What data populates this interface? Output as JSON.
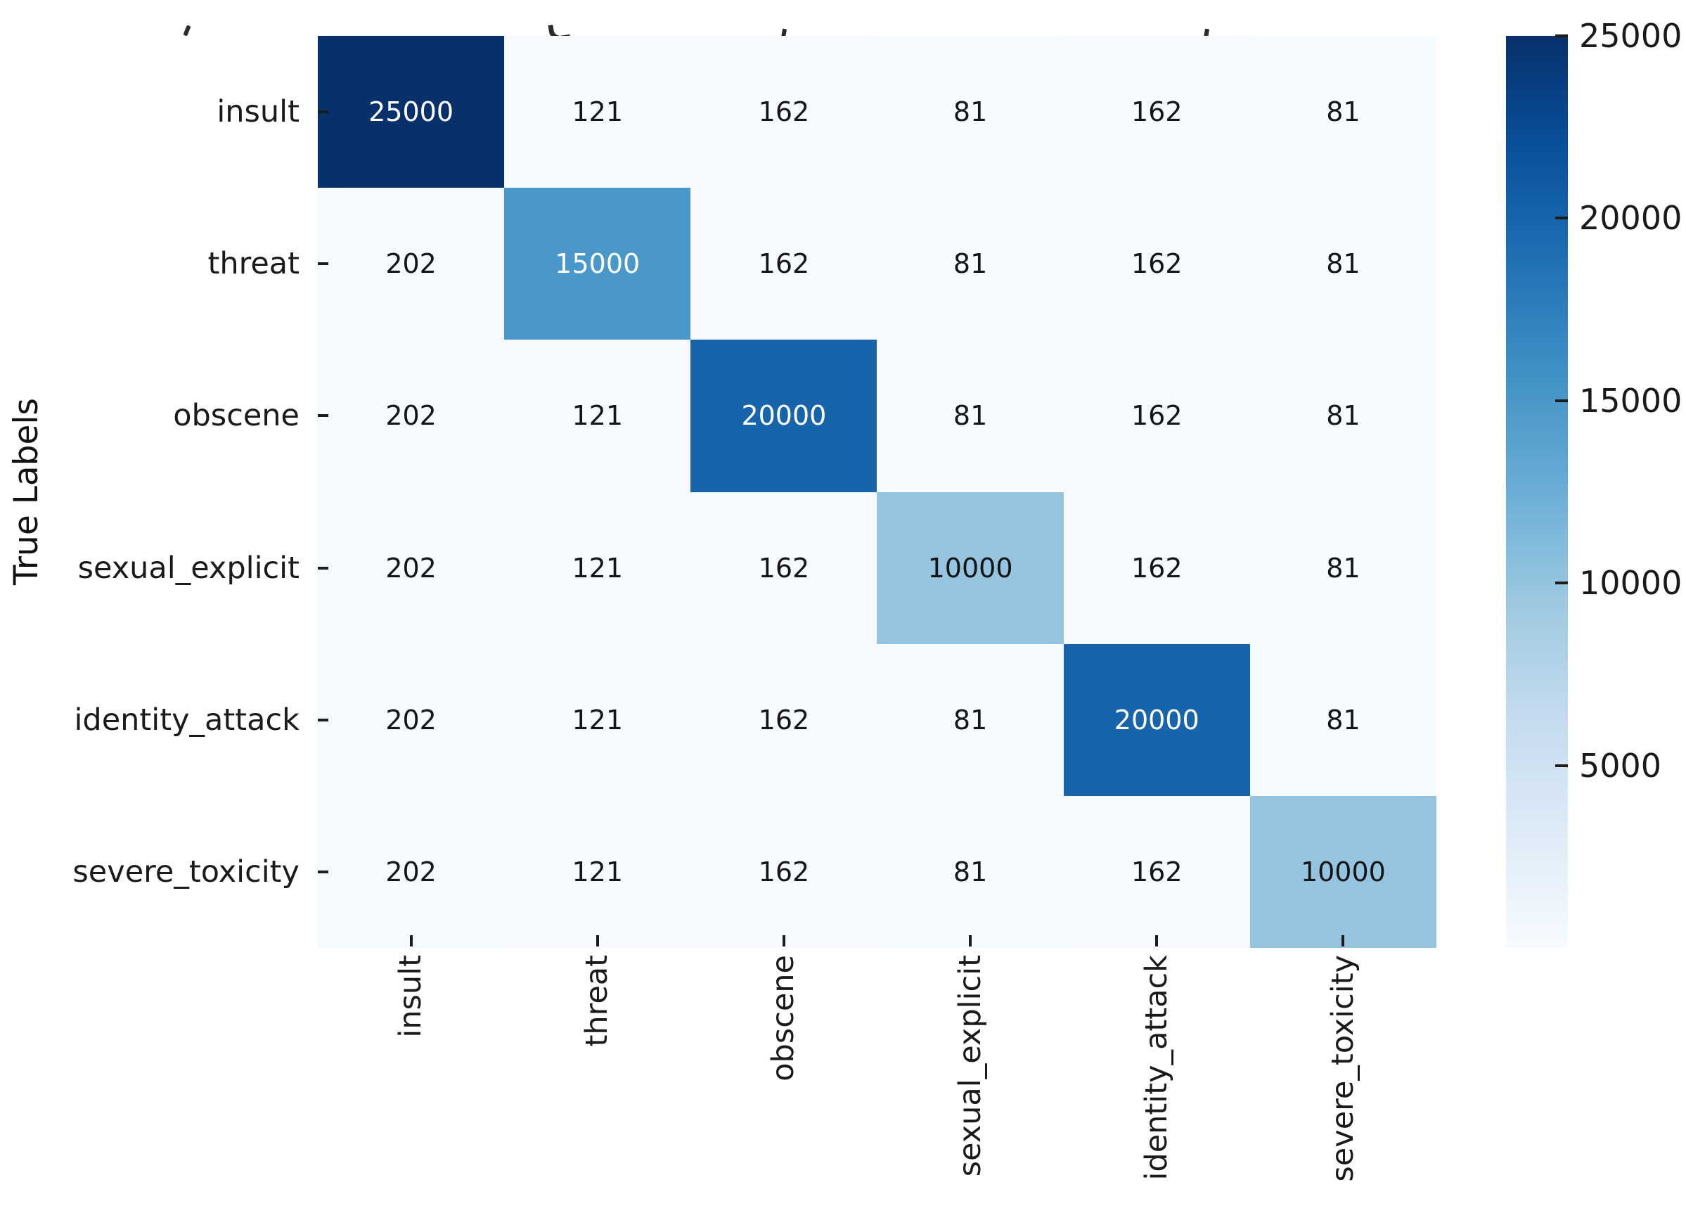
{
  "chart_data": {
    "type": "heatmap",
    "title": "",
    "ylabel": "True Labels",
    "xlabel": "",
    "x_categories": [
      "insult",
      "threat",
      "obscene",
      "sexual_explicit",
      "identity_attack",
      "severe_toxicity"
    ],
    "y_categories": [
      "insult",
      "threat",
      "obscene",
      "sexual_explicit",
      "identity_attack",
      "severe_toxicity"
    ],
    "matrix": [
      [
        25000,
        121,
        162,
        81,
        162,
        81
      ],
      [
        202,
        15000,
        162,
        81,
        162,
        81
      ],
      [
        202,
        121,
        20000,
        81,
        162,
        81
      ],
      [
        202,
        121,
        162,
        10000,
        162,
        81
      ],
      [
        202,
        121,
        162,
        81,
        20000,
        81
      ],
      [
        202,
        121,
        162,
        81,
        162,
        10000
      ]
    ],
    "vmin": 0,
    "vmax": 25000,
    "colormap": "Blues",
    "colormap_anchors": [
      "#f7fbff",
      "#deebf7",
      "#c6dbef",
      "#9ecae1",
      "#6baed6",
      "#4292c6",
      "#2171b5",
      "#08519c",
      "#08306b"
    ],
    "annotation_color_light_cells": "#151515",
    "annotation_color_dark_cells": "#ffffff",
    "colorbar": {
      "position": "right",
      "ticks": [
        5000,
        10000,
        15000,
        20000,
        25000
      ]
    },
    "grid": false,
    "legend_position": "none"
  }
}
